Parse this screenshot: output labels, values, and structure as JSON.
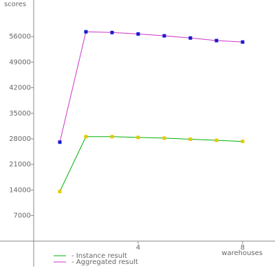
{
  "chart_data": {
    "type": "line",
    "y_label": "scores",
    "x_label": "warehouses",
    "x": [
      1,
      2,
      3,
      4,
      5,
      6,
      7,
      8
    ],
    "xlim": [
      -1.29,
      9.24
    ],
    "xticks": [
      4,
      8
    ],
    "ylim": [
      -7000,
      66000
    ],
    "yticks": [
      7000,
      14000,
      21000,
      28000,
      35000,
      42000,
      49000,
      56000
    ],
    "series": [
      {
        "name": "- Instance result",
        "color": "#00b000",
        "marker_color": "#e8c800",
        "values": [
          13600,
          28600,
          28600,
          28400,
          28200,
          27900,
          27600,
          27300
        ]
      },
      {
        "name": "- Aggregated result",
        "color": "#cc33cc",
        "marker_color": "#1a1acc",
        "values": [
          27100,
          57300,
          57100,
          56700,
          56200,
          55600,
          54900,
          54500
        ]
      }
    ]
  }
}
